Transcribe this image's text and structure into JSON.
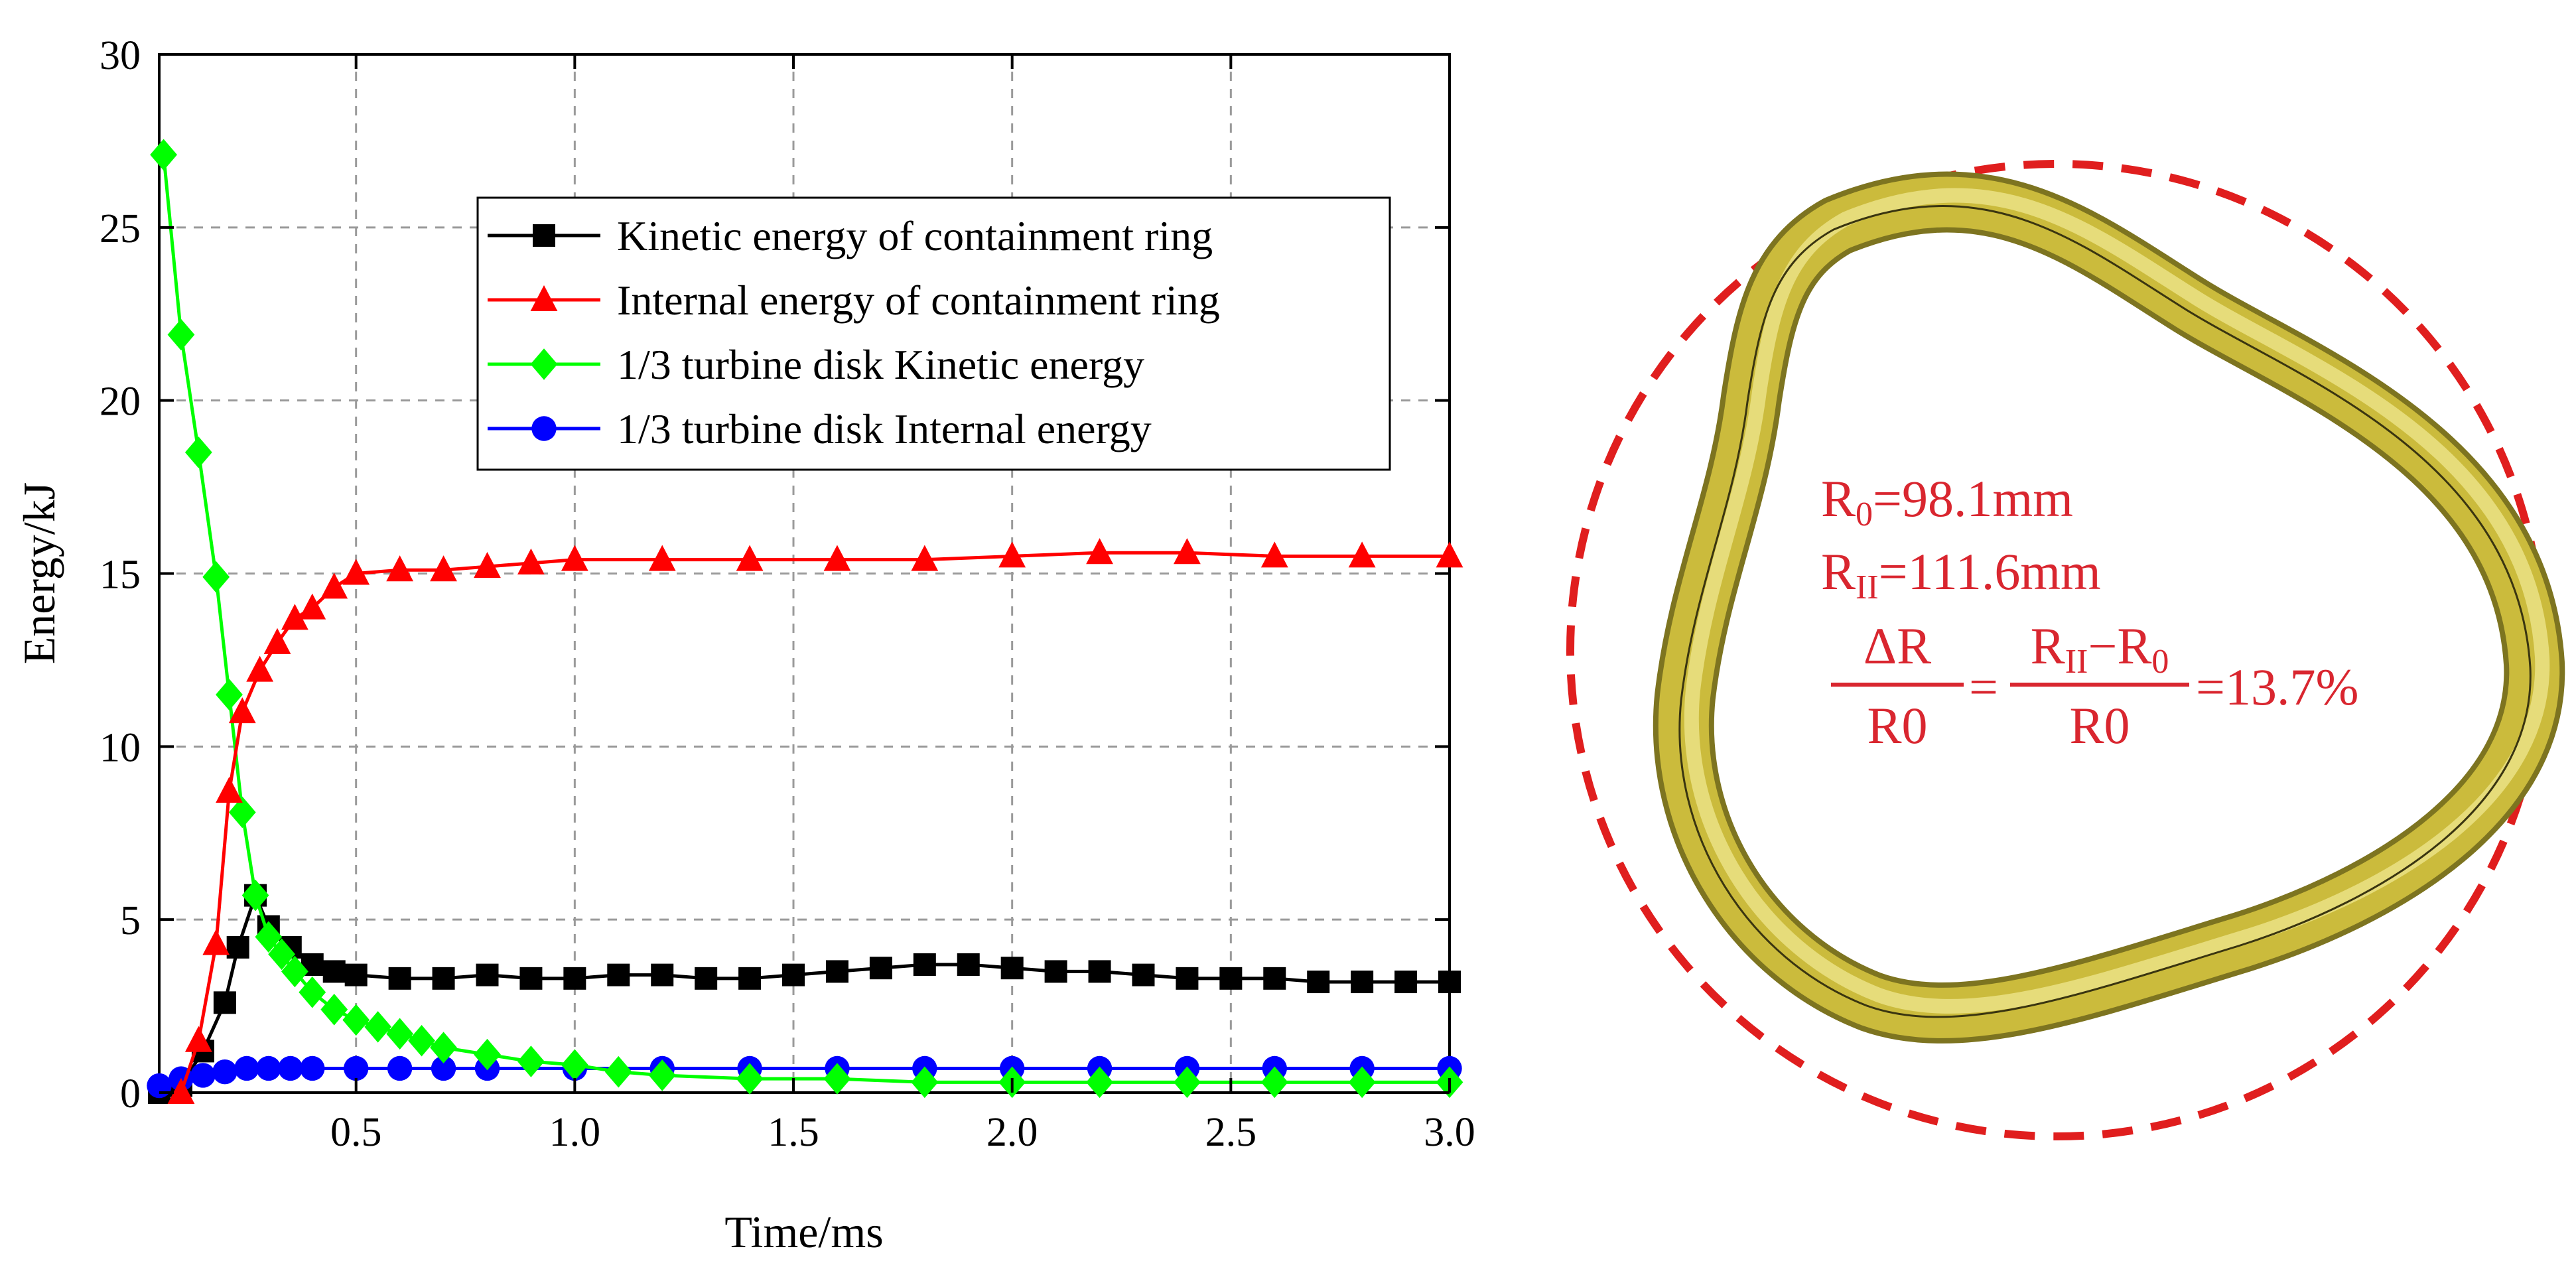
{
  "chart_data": {
    "type": "line",
    "title": "",
    "xlabel": "Time/ms",
    "ylabel": "Energy/kJ",
    "xlim": [
      0.05,
      3.0
    ],
    "ylim": [
      0,
      30
    ],
    "xticks": [
      0.5,
      1.0,
      1.5,
      2.0,
      2.5,
      3.0
    ],
    "xtick_labels": [
      "0.5",
      "1.0",
      "1.5",
      "2.0",
      "2.5",
      "3.0"
    ],
    "yticks": [
      0,
      5,
      10,
      15,
      20,
      25,
      30
    ],
    "ytick_labels": [
      "0",
      "5",
      "10",
      "15",
      "20",
      "25",
      "30"
    ],
    "grid": true,
    "legend_position": "upper-middle",
    "series": [
      {
        "name": "Kinetic energy of containment ring",
        "color": "#000000",
        "marker": "square",
        "x": [
          0.05,
          0.1,
          0.15,
          0.2,
          0.23,
          0.27,
          0.3,
          0.35,
          0.4,
          0.45,
          0.5,
          0.6,
          0.7,
          0.8,
          0.9,
          1.0,
          1.1,
          1.2,
          1.3,
          1.4,
          1.5,
          1.6,
          1.7,
          1.8,
          1.9,
          2.0,
          2.1,
          2.2,
          2.3,
          2.4,
          2.5,
          2.6,
          2.7,
          2.8,
          2.9,
          3.0
        ],
        "y": [
          0.0,
          0.2,
          1.2,
          2.6,
          4.2,
          5.7,
          4.8,
          4.2,
          3.7,
          3.5,
          3.4,
          3.3,
          3.3,
          3.4,
          3.3,
          3.3,
          3.4,
          3.4,
          3.3,
          3.3,
          3.4,
          3.5,
          3.6,
          3.7,
          3.7,
          3.6,
          3.5,
          3.5,
          3.4,
          3.3,
          3.3,
          3.3,
          3.2,
          3.2,
          3.2,
          3.2
        ]
      },
      {
        "name": "Internal energy of containment ring",
        "color": "#ff0000",
        "marker": "triangle",
        "x": [
          0.1,
          0.14,
          0.18,
          0.21,
          0.24,
          0.28,
          0.32,
          0.36,
          0.4,
          0.45,
          0.5,
          0.6,
          0.7,
          0.8,
          0.9,
          1.0,
          1.2,
          1.4,
          1.6,
          1.8,
          2.0,
          2.2,
          2.4,
          2.6,
          2.8,
          3.0
        ],
        "y": [
          0.0,
          1.5,
          4.3,
          8.7,
          11.0,
          12.2,
          13.0,
          13.7,
          14.0,
          14.6,
          15.0,
          15.1,
          15.1,
          15.2,
          15.3,
          15.4,
          15.4,
          15.4,
          15.4,
          15.4,
          15.5,
          15.6,
          15.6,
          15.5,
          15.5,
          15.5
        ]
      },
      {
        "name": "1/3 turbine disk Kinetic energy",
        "color": "#00ff00",
        "marker": "diamond",
        "x": [
          0.06,
          0.1,
          0.14,
          0.18,
          0.21,
          0.24,
          0.27,
          0.3,
          0.33,
          0.36,
          0.4,
          0.45,
          0.5,
          0.55,
          0.6,
          0.65,
          0.7,
          0.8,
          0.9,
          1.0,
          1.1,
          1.2,
          1.4,
          1.6,
          1.8,
          2.0,
          2.2,
          2.4,
          2.6,
          2.8,
          3.0
        ],
        "y": [
          27.1,
          21.9,
          18.5,
          14.9,
          11.5,
          8.1,
          5.7,
          4.5,
          4.0,
          3.5,
          2.9,
          2.4,
          2.1,
          1.9,
          1.7,
          1.5,
          1.3,
          1.1,
          0.9,
          0.8,
          0.6,
          0.5,
          0.4,
          0.4,
          0.3,
          0.3,
          0.3,
          0.3,
          0.3,
          0.3,
          0.3
        ]
      },
      {
        "name": "1/3 turbine disk Internal energy",
        "color": "#0000ff",
        "marker": "circle",
        "x": [
          0.05,
          0.1,
          0.15,
          0.2,
          0.25,
          0.3,
          0.35,
          0.4,
          0.5,
          0.6,
          0.7,
          0.8,
          1.0,
          1.2,
          1.4,
          1.6,
          1.8,
          2.0,
          2.2,
          2.4,
          2.6,
          2.8,
          3.0
        ],
        "y": [
          0.2,
          0.4,
          0.5,
          0.6,
          0.7,
          0.7,
          0.7,
          0.7,
          0.7,
          0.7,
          0.7,
          0.7,
          0.7,
          0.7,
          0.7,
          0.7,
          0.7,
          0.7,
          0.7,
          0.7,
          0.7,
          0.7,
          0.7
        ]
      }
    ]
  },
  "annotation": {
    "r0_main": "R",
    "r0_sub": "0",
    "r0_value": "=98.1mm",
    "r2_main": "R",
    "r2_sub": "II",
    "r2_value": "=111.6mm",
    "frac1_num": "ΔR",
    "frac1_den": "R0",
    "eq_sign": "=",
    "frac2_num_a": "R",
    "frac2_num_a_sub": "II",
    "frac2_num_minus": "−R",
    "frac2_num_b_sub": "0",
    "frac2_den": "R0",
    "result": "=13.7%",
    "color": "#d9262f"
  },
  "ring": {
    "fill_color": "#c9b93a",
    "circle_color": "#e01e1e"
  }
}
